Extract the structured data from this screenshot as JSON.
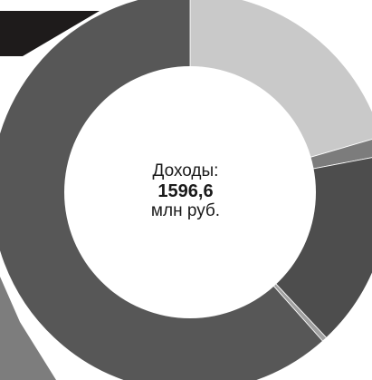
{
  "chart_data": {
    "type": "pie",
    "variant": "donut",
    "center": {
      "title": "Доходы:",
      "total": "1596,6",
      "unit": "млн руб."
    },
    "slices": [
      {
        "value": 20.5,
        "color": "#c9c9c9"
      },
      {
        "value": 1.5,
        "color": "#7c7c7c"
      },
      {
        "value": 16.0,
        "color": "#4d4d4d"
      },
      {
        "value": 0.4,
        "color": "#a0a0a0"
      },
      {
        "value": 61.6,
        "color": "#575757"
      }
    ],
    "legend": []
  }
}
